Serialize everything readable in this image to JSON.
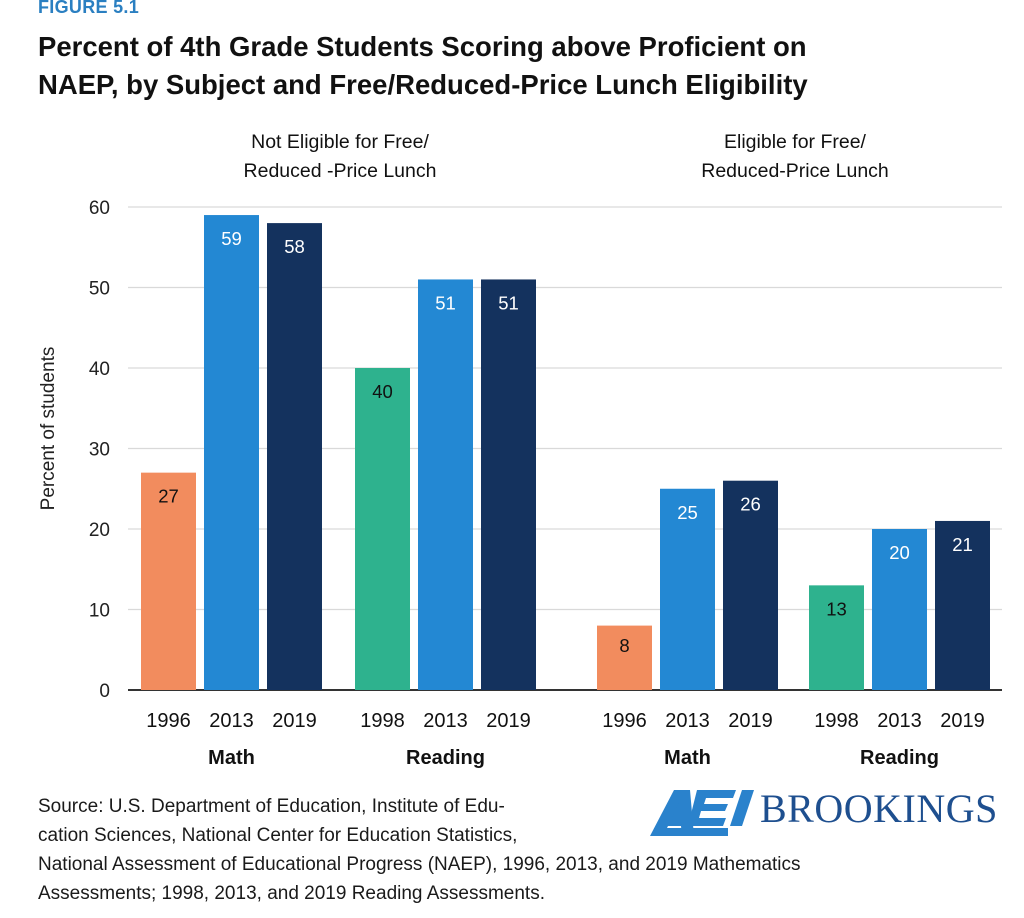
{
  "figure_label": "FIGURE 5.1",
  "title_lines": [
    "Percent of 4th Grade Students Scoring above Proficient on",
    "NAEP, by Subject and Free/Reduced-Price Lunch Eligibility"
  ],
  "source_lines": [
    "Source: U.S. Department of Education, Institute of Edu-",
    "cation Sciences, National Center for Education Statistics,",
    "National Assessment of Educational Progress (NAEP), 1996, 2013, and 2019 Mathematics",
    "Assessments; 1998, 2013, and 2019 Reading Assessments."
  ],
  "logo": {
    "aei_text": "AEI",
    "brookings_text": "BROOKINGS"
  },
  "colors": {
    "math_early": "#f28c5e",
    "reading_early": "#2eb28e",
    "year_2013": "#2388d3",
    "year_2019": "#14325e",
    "grid": "#d9d9d9",
    "axis": "#333333"
  },
  "chart_data": {
    "type": "bar",
    "ylabel": "Percent of students",
    "ylim": [
      0,
      60
    ],
    "yticks": [
      0,
      10,
      20,
      30,
      40,
      50,
      60
    ],
    "grid": true,
    "panels": [
      {
        "title": [
          "Not Eligible for Free/",
          "Reduced -Price Lunch"
        ],
        "groups": [
          {
            "label": "Math",
            "bars": [
              {
                "year": "1996",
                "value": 27
              },
              {
                "year": "2013",
                "value": 59
              },
              {
                "year": "2019",
                "value": 58
              }
            ]
          },
          {
            "label": "Reading",
            "bars": [
              {
                "year": "1998",
                "value": 40
              },
              {
                "year": "2013",
                "value": 51
              },
              {
                "year": "2019",
                "value": 51
              }
            ]
          }
        ]
      },
      {
        "title": [
          "Eligible for Free/",
          "Reduced-Price Lunch"
        ],
        "groups": [
          {
            "label": "Math",
            "bars": [
              {
                "year": "1996",
                "value": 8
              },
              {
                "year": "2013",
                "value": 25
              },
              {
                "year": "2019",
                "value": 26
              }
            ]
          },
          {
            "label": "Reading",
            "bars": [
              {
                "year": "1998",
                "value": 13
              },
              {
                "year": "2013",
                "value": 20
              },
              {
                "year": "2019",
                "value": 21
              }
            ]
          }
        ]
      }
    ]
  }
}
